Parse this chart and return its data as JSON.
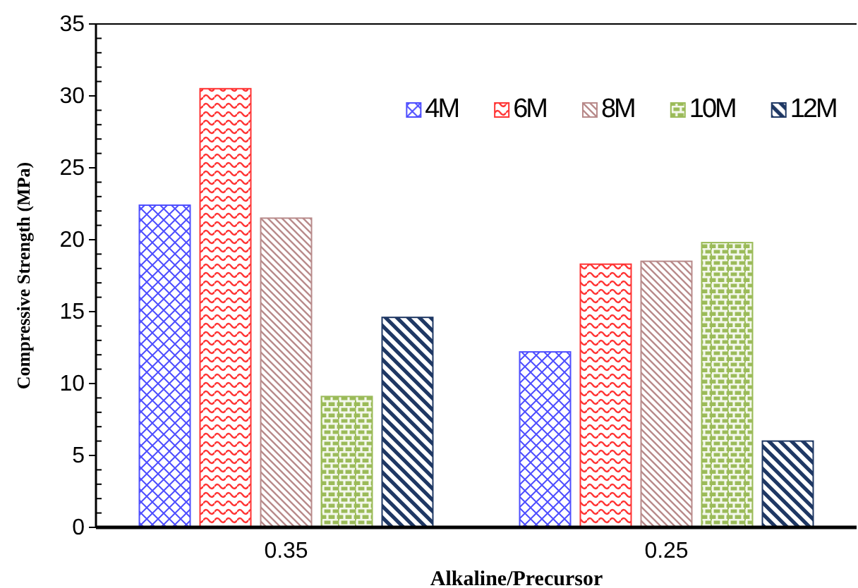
{
  "chart_data": {
    "type": "bar",
    "xlabel": "Alkaline/Precursor",
    "ylabel": "Compressive Strength (MPa)",
    "categories": [
      "0.35",
      "0.25"
    ],
    "series": [
      {
        "name": "4M",
        "color": "#4d4dff",
        "values": [
          22.4,
          12.2
        ]
      },
      {
        "name": "6M",
        "color": "#ff3333",
        "values": [
          30.5,
          18.3
        ]
      },
      {
        "name": "8M",
        "color": "#b88a8a",
        "values": [
          21.5,
          18.5
        ]
      },
      {
        "name": "10M",
        "color": "#9bbb59",
        "values": [
          9.1,
          19.8
        ]
      },
      {
        "name": "12M",
        "color": "#1f3864",
        "values": [
          14.6,
          6.0
        ]
      }
    ],
    "ylim": [
      0,
      35
    ],
    "yticks": [
      0,
      5,
      10,
      15,
      20,
      25,
      30,
      35
    ],
    "legend": "top right",
    "grid": false
  }
}
